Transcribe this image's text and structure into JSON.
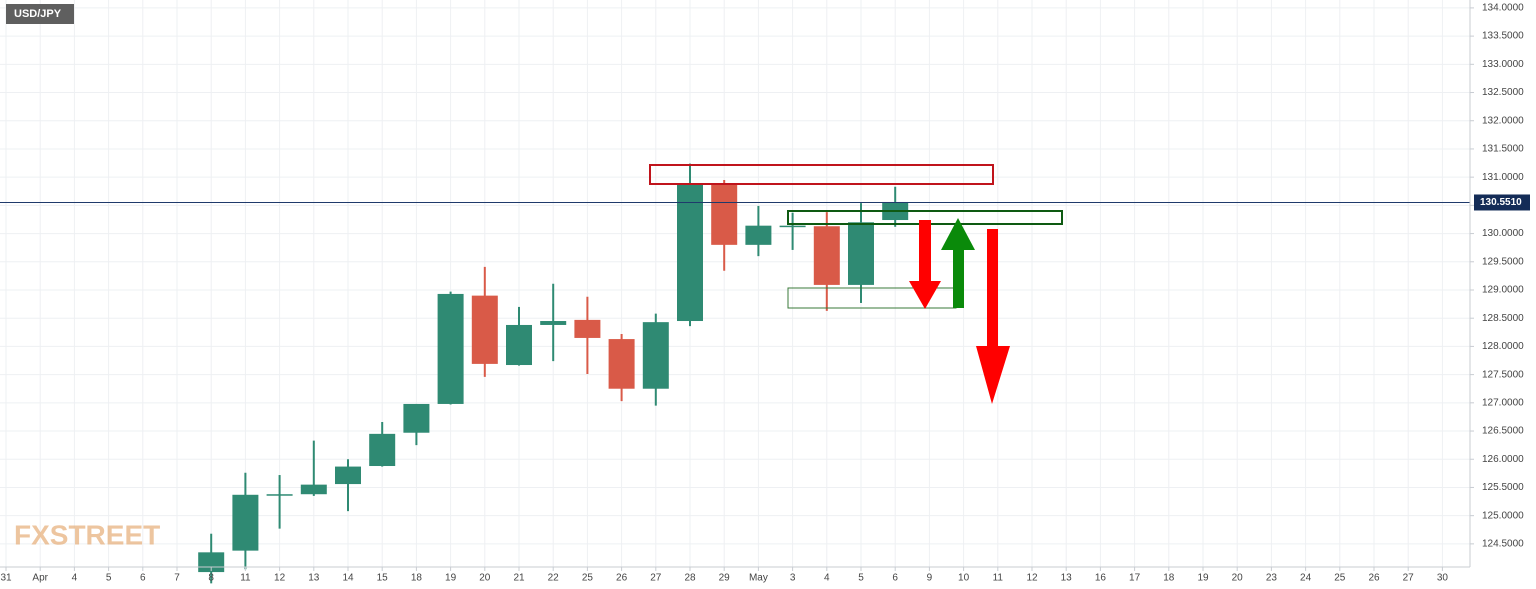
{
  "chart_data": {
    "type": "candlestick",
    "title": "USD/JPY",
    "watermark": "FXSTREET",
    "categories": [
      "31",
      "Apr",
      "4",
      "5",
      "6",
      "7",
      "8",
      "11",
      "12",
      "13",
      "14",
      "15",
      "18",
      "19",
      "20",
      "21",
      "22",
      "25",
      "26",
      "27",
      "28",
      "29",
      "May",
      "3",
      "4",
      "5",
      "6",
      "9",
      "10",
      "11",
      "12",
      "13",
      "16",
      "17",
      "18",
      "19",
      "20",
      "23",
      "24",
      "25",
      "26",
      "27",
      "30"
    ],
    "open": [
      null,
      null,
      null,
      null,
      null,
      null,
      124.0,
      124.38,
      125.36,
      125.38,
      125.56,
      125.88,
      126.47,
      126.98,
      128.9,
      127.67,
      128.38,
      128.47,
      128.13,
      127.25,
      128.45,
      130.88,
      129.8,
      130.13,
      130.13,
      129.09,
      130.24,
      null,
      null,
      null,
      null,
      null,
      null,
      null,
      null,
      null,
      null,
      null,
      null,
      null,
      null,
      null,
      null
    ],
    "high": [
      null,
      null,
      null,
      null,
      null,
      null,
      124.68,
      125.76,
      125.72,
      126.33,
      126.0,
      126.66,
      126.98,
      128.97,
      129.41,
      128.7,
      129.11,
      128.88,
      128.22,
      128.58,
      131.24,
      130.95,
      130.49,
      130.37,
      130.38,
      130.54,
      130.83,
      null,
      null,
      null,
      null,
      null,
      null,
      null,
      null,
      null,
      null,
      null,
      null,
      null,
      null,
      null,
      null
    ],
    "low": [
      null,
      null,
      null,
      null,
      null,
      null,
      123.8,
      124.05,
      124.77,
      125.35,
      125.08,
      125.87,
      126.25,
      126.97,
      127.46,
      127.66,
      127.74,
      127.51,
      127.03,
      126.95,
      128.36,
      129.34,
      129.6,
      129.71,
      128.63,
      128.77,
      130.12,
      null,
      null,
      null,
      null,
      null,
      null,
      null,
      null,
      null,
      null,
      null,
      null,
      null,
      null,
      null,
      null
    ],
    "close": [
      null,
      null,
      null,
      null,
      null,
      null,
      124.35,
      125.37,
      125.38,
      125.55,
      125.87,
      126.45,
      126.98,
      128.93,
      127.69,
      128.38,
      128.45,
      128.15,
      127.25,
      128.43,
      130.88,
      129.8,
      130.14,
      130.14,
      129.09,
      130.2,
      130.56,
      null,
      null,
      null,
      null,
      null,
      null,
      null,
      null,
      null,
      null,
      null,
      null,
      null,
      null,
      null,
      null
    ],
    "up_color": "#2f8a73",
    "down_color": "#d95a48",
    "current_price": 130.551,
    "current_price_label": "130.5510",
    "ylim": [
      124.09,
      134.14
    ],
    "yticks": [
      {
        "value": 124.5,
        "label": "124.5000"
      },
      {
        "value": 125,
        "label": "125.0000"
      },
      {
        "value": 125.5,
        "label": "125.5000"
      },
      {
        "value": 126,
        "label": "126.0000"
      },
      {
        "value": 126.5,
        "label": "126.5000"
      },
      {
        "value": 127,
        "label": "127.0000"
      },
      {
        "value": 127.5,
        "label": "127.5000"
      },
      {
        "value": 128,
        "label": "128.0000"
      },
      {
        "value": 128.5,
        "label": "128.5000"
      },
      {
        "value": 129,
        "label": "129.0000"
      },
      {
        "value": 129.5,
        "label": "129.5000"
      },
      {
        "value": 130,
        "label": "130.0000"
      },
      {
        "value": 130.5,
        "label": "130.5000"
      },
      {
        "value": 131,
        "label": "131.0000"
      },
      {
        "value": 131.5,
        "label": "131.5000"
      },
      {
        "value": 132,
        "label": "132.0000"
      },
      {
        "value": 132.5,
        "label": "132.5000"
      },
      {
        "value": 133,
        "label": "133.0000"
      },
      {
        "value": 133.5,
        "label": "133.5000"
      },
      {
        "value": 134,
        "label": "134.0000"
      }
    ],
    "grid": true
  }
}
